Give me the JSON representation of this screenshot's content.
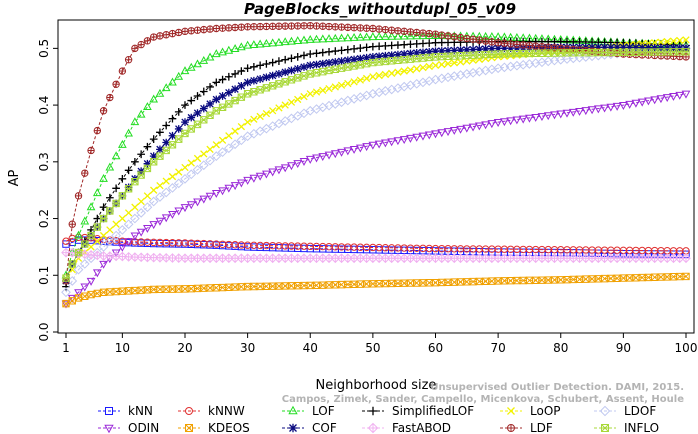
{
  "chart_data": {
    "type": "line",
    "title": "PageBlocks_withoutdupl_05_v09",
    "xlabel": "Neighborhood size",
    "ylabel": "AP",
    "xlim": [
      1,
      100
    ],
    "ylim": [
      0.0,
      0.55
    ],
    "x_ticks": [
      1,
      10,
      20,
      30,
      40,
      50,
      60,
      70,
      80,
      90,
      100
    ],
    "y_ticks": [
      0.0,
      0.1,
      0.2,
      0.3,
      0.4,
      0.5
    ],
    "y_tick_labels": [
      "0.0",
      "0.1",
      "0.2",
      "0.3",
      "0.4",
      "0.5"
    ],
    "grid": false,
    "legend_position": "bottom",
    "x": [
      1,
      2,
      3,
      5,
      7,
      10,
      12,
      15,
      20,
      25,
      30,
      40,
      50,
      60,
      70,
      80,
      90,
      100
    ],
    "series": [
      {
        "name": "kNN",
        "color": "#1a1aff",
        "marker": "square",
        "values": [
          0.155,
          0.158,
          0.162,
          0.162,
          0.16,
          0.158,
          0.157,
          0.156,
          0.155,
          0.153,
          0.15,
          0.147,
          0.145,
          0.143,
          0.141,
          0.14,
          0.138,
          0.137
        ]
      },
      {
        "name": "kNNW",
        "color": "#e03030",
        "marker": "circle",
        "values": [
          0.16,
          0.165,
          0.167,
          0.166,
          0.163,
          0.16,
          0.159,
          0.158,
          0.157,
          0.155,
          0.153,
          0.151,
          0.149,
          0.147,
          0.146,
          0.145,
          0.144,
          0.143
        ]
      },
      {
        "name": "LOF",
        "color": "#22dd22",
        "marker": "triangle-up",
        "values": [
          0.1,
          0.14,
          0.17,
          0.22,
          0.27,
          0.33,
          0.37,
          0.41,
          0.46,
          0.49,
          0.505,
          0.515,
          0.52,
          0.522,
          0.52,
          0.515,
          0.51,
          0.505
        ]
      },
      {
        "name": "SimplifiedLOF",
        "color": "#000000",
        "marker": "plus",
        "values": [
          0.08,
          0.12,
          0.14,
          0.18,
          0.22,
          0.27,
          0.3,
          0.34,
          0.4,
          0.44,
          0.465,
          0.49,
          0.503,
          0.51,
          0.512,
          0.512,
          0.51,
          0.505
        ]
      },
      {
        "name": "LoOP",
        "color": "#f2f200",
        "marker": "x",
        "values": [
          0.09,
          0.11,
          0.13,
          0.15,
          0.17,
          0.2,
          0.22,
          0.25,
          0.29,
          0.33,
          0.37,
          0.42,
          0.45,
          0.47,
          0.485,
          0.495,
          0.505,
          0.515
        ]
      },
      {
        "name": "LDOF",
        "color": "#c0c8f0",
        "marker": "diamond",
        "values": [
          0.07,
          0.09,
          0.11,
          0.13,
          0.15,
          0.18,
          0.2,
          0.23,
          0.27,
          0.31,
          0.345,
          0.39,
          0.42,
          0.445,
          0.465,
          0.48,
          0.492,
          0.5
        ]
      },
      {
        "name": "ODIN",
        "color": "#9a28d8",
        "marker": "triangle-down",
        "values": [
          0.05,
          0.06,
          0.07,
          0.09,
          0.12,
          0.15,
          0.17,
          0.19,
          0.22,
          0.245,
          0.268,
          0.305,
          0.33,
          0.35,
          0.37,
          0.385,
          0.4,
          0.42
        ]
      },
      {
        "name": "KDEOS",
        "color": "#f0a000",
        "marker": "square-x",
        "values": [
          0.05,
          0.055,
          0.06,
          0.066,
          0.07,
          0.072,
          0.073,
          0.075,
          0.076,
          0.078,
          0.08,
          0.082,
          0.085,
          0.087,
          0.09,
          0.092,
          0.095,
          0.098
        ]
      },
      {
        "name": "COF",
        "color": "#0a0a80",
        "marker": "asterisk",
        "values": [
          0.09,
          0.12,
          0.14,
          0.17,
          0.2,
          0.24,
          0.27,
          0.31,
          0.37,
          0.41,
          0.44,
          0.47,
          0.485,
          0.495,
          0.5,
          0.502,
          0.502,
          0.5
        ]
      },
      {
        "name": "FastABOD",
        "color": "#f0b0f0",
        "marker": "diamond-plus",
        "values": [
          0.14,
          0.14,
          0.138,
          0.136,
          0.134,
          0.133,
          0.132,
          0.131,
          0.13,
          0.13,
          0.13,
          0.13,
          0.13,
          0.13,
          0.13,
          0.13,
          0.13,
          0.13
        ]
      },
      {
        "name": "LDF",
        "color": "#a02828",
        "marker": "circle-plus",
        "values": [
          0.09,
          0.19,
          0.24,
          0.32,
          0.39,
          0.46,
          0.5,
          0.52,
          0.53,
          0.535,
          0.538,
          0.54,
          0.535,
          0.525,
          0.51,
          0.5,
          0.49,
          0.485
        ]
      },
      {
        "name": "INFLO",
        "color": "#a8d838",
        "marker": "hourglass",
        "values": [
          0.095,
          0.12,
          0.14,
          0.17,
          0.2,
          0.24,
          0.265,
          0.3,
          0.35,
          0.39,
          0.42,
          0.455,
          0.475,
          0.485,
          0.49,
          0.492,
          0.493,
          0.494
        ]
      }
    ],
    "watermark": [
      "Unsupervised Outlier Detection. DAMI, 2015.",
      "Campos, Zimek, Sander, Campello, Micenkova, Schubert, Assent, Houle"
    ]
  }
}
